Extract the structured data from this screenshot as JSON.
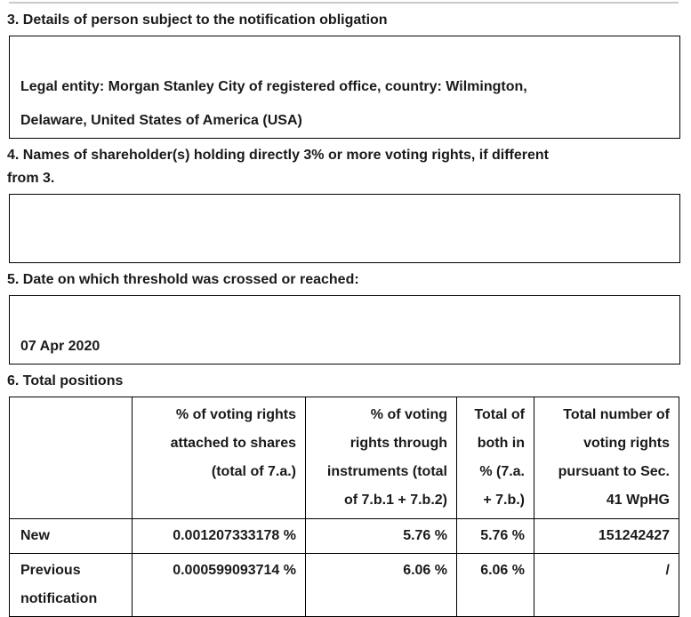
{
  "colors": {
    "text": "#1a1a1a",
    "border": "#000000",
    "top_divider": "#c9c9c9"
  },
  "section3": {
    "heading": "3. Details of person subject to the notification obligation",
    "box_text": "Legal entity: Morgan Stanley City of registered office, country: Wilmington,\nDelaware, United States of America (USA)"
  },
  "section4": {
    "heading": "4. Names of shareholder(s) holding directly 3% or more voting rights, if different\nfrom 3.",
    "box_text": ""
  },
  "section5": {
    "heading": "5. Date on which threshold was crossed or reached:",
    "box_text": "07 Apr 2020"
  },
  "section6": {
    "heading": "6. Total positions"
  },
  "positions_table": {
    "col_headers": [
      "",
      "% of voting rights\nattached to shares\n(total of 7.a.)",
      "% of voting\nrights through\ninstruments (total\nof 7.b.1 + 7.b.2)",
      "Total of\nboth in\n% (7.a.\n+ 7.b.)",
      "Total number of\nvoting rights\npursuant to Sec.\n41 WpHG"
    ],
    "rows": [
      {
        "label": "New",
        "shares_pct": "0.001207333178 %",
        "instruments_pct": "5.76 %",
        "total_pct": "5.76 %",
        "total_voting_rights": "151242427"
      },
      {
        "label": "Previous notification",
        "shares_pct": "0.000599093714 %",
        "instruments_pct": "6.06 %",
        "total_pct": "6.06 %",
        "total_voting_rights": "/"
      }
    ]
  }
}
